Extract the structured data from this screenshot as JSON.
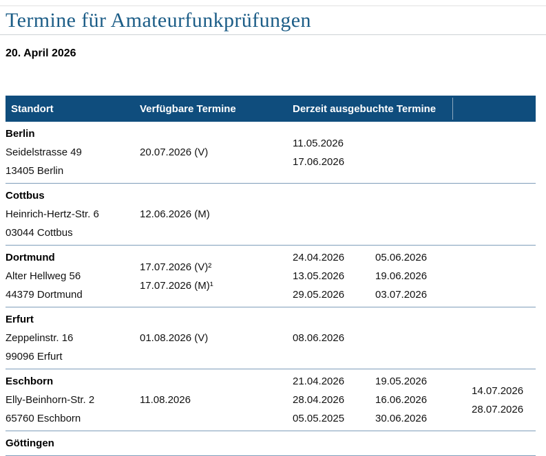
{
  "page": {
    "title": "Termine für Amateurfunkprüfungen",
    "date": "20. April 2026"
  },
  "colors": {
    "header_bg": "#0f4d7d",
    "title_text": "#1c5d87",
    "row_divider": "#7d9cb9",
    "header_divider": "#8fa9bf"
  },
  "table": {
    "headers": {
      "standort": "Standort",
      "verfuegbare": "Verfügbare Termine",
      "ausgebuchte": "Derzeit ausgebuchte Termine"
    },
    "rows": [
      {
        "city": "Berlin",
        "street": "Seidelstrasse 49",
        "zip_city": "13405 Berlin",
        "available": [
          "20.07.2026 (V)"
        ],
        "booked": [
          [
            "11.05.2026",
            "17.06.2026"
          ],
          [],
          []
        ]
      },
      {
        "city": "Cottbus",
        "street": "Heinrich-Hertz-Str. 6",
        "zip_city": "03044 Cottbus",
        "available": [
          "12.06.2026 (M)"
        ],
        "booked": [
          [],
          [],
          []
        ]
      },
      {
        "city": "Dortmund",
        "street": "Alter Hellweg 56",
        "zip_city": "44379 Dortmund",
        "available": [
          "17.07.2026 (V)²",
          "17.07.2026 (M)¹"
        ],
        "booked": [
          [
            "24.04.2026",
            "13.05.2026",
            "29.05.2026"
          ],
          [
            "05.06.2026",
            "19.06.2026",
            "03.07.2026"
          ],
          []
        ]
      },
      {
        "city": "Erfurt",
        "street": "Zeppelinstr. 16",
        "zip_city": "99096 Erfurt",
        "available": [
          "01.08.2026 (V)"
        ],
        "booked": [
          [
            "08.06.2026"
          ],
          [],
          []
        ]
      },
      {
        "city": "Eschborn",
        "street": "Elly-Beinhorn-Str. 2",
        "zip_city": "65760 Eschborn",
        "available": [
          "11.08.2026"
        ],
        "booked": [
          [
            "21.04.2026",
            "28.04.2026",
            "05.05.2025"
          ],
          [
            "19.05.2026",
            "16.06.2026",
            "30.06.2026"
          ],
          [
            "14.07.2026",
            "28.07.2026"
          ]
        ]
      },
      {
        "city": "Göttingen",
        "street": "",
        "zip_city": "",
        "available": [],
        "booked": [
          [],
          [],
          []
        ]
      }
    ]
  }
}
